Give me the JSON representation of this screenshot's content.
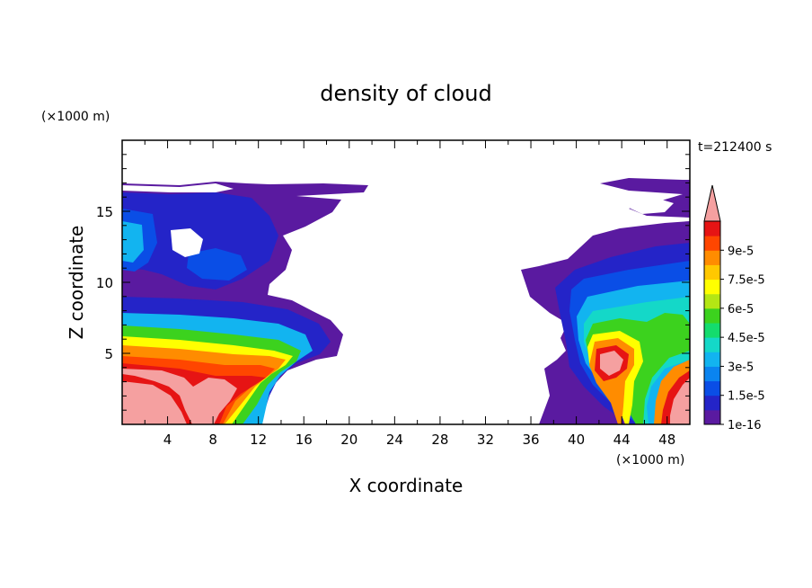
{
  "chart_data": {
    "type": "heatmap",
    "title": "density of cloud",
    "time_label": "t=212400 s",
    "xlabel": "X coordinate",
    "ylabel": "Z coordinate",
    "x_unit": "(×1000 m)",
    "y_unit": "(×1000 m)",
    "xlim": [
      0,
      50
    ],
    "ylim": [
      0,
      20
    ],
    "x_ticks": [
      "4",
      "8",
      "12",
      "16",
      "20",
      "24",
      "28",
      "32",
      "36",
      "40",
      "44",
      "48"
    ],
    "y_ticks": [
      "5",
      "10",
      "15"
    ],
    "colorbar": {
      "labels": [
        "9e-5",
        "7.5e-5",
        "6e-5",
        "4.5e-5",
        "3e-5",
        "1.5e-5",
        "1e-16"
      ],
      "levels": [
        1e-16,
        7.5e-06,
        1.5e-05,
        2.25e-05,
        3e-05,
        3.75e-05,
        4.5e-05,
        5.25e-05,
        6e-05,
        6.75e-05,
        7.5e-05,
        8.25e-05,
        9e-05,
        9.75e-05
      ],
      "colors": [
        "#5a1aa0",
        "#2424c8",
        "#0a4ee6",
        "#0a84f0",
        "#12b4f0",
        "#14d8c8",
        "#14dc6e",
        "#3cd21e",
        "#b4e614",
        "#ffff00",
        "#ffc800",
        "#ff8c00",
        "#ff4600",
        "#e61414"
      ],
      "extend_color": "#f5a0a0"
    }
  }
}
